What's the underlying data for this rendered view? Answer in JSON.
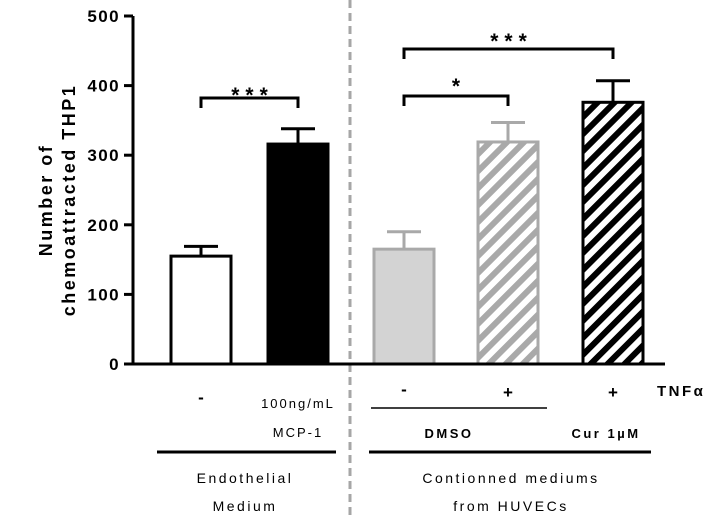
{
  "chart_data": {
    "type": "bar",
    "ylabel_lines": [
      "Number of",
      "chemoattracted THP1"
    ],
    "ylim": [
      0,
      500
    ],
    "yticks": [
      0,
      100,
      200,
      300,
      400,
      500
    ],
    "grid": false,
    "bars": [
      {
        "value": 155,
        "error": 14,
        "fill": "#ffffff",
        "stroke": "#000000",
        "pattern": "none"
      },
      {
        "value": 316,
        "error": 22,
        "fill": "#000000",
        "stroke": "#000000",
        "pattern": "none"
      },
      {
        "value": 165,
        "error": 25,
        "fill": "#d3d3d3",
        "stroke": "#a9a9a9",
        "pattern": "none"
      },
      {
        "value": 319,
        "error": 28,
        "fill": "#ffffff",
        "stroke": "#a9a9a9",
        "pattern": "hatch-gray"
      },
      {
        "value": 376,
        "error": 31,
        "fill": "#ffffff",
        "stroke": "#000000",
        "pattern": "hatch-black"
      }
    ],
    "significance": [
      {
        "from": 0,
        "to": 1,
        "label": "***"
      },
      {
        "from": 2,
        "to": 3,
        "label": "*"
      },
      {
        "from": 2,
        "to": 4,
        "label": "***"
      }
    ],
    "conditions": {
      "bar0": "-",
      "bar1_lines": [
        "100ng/mL",
        "MCP-1"
      ],
      "bar2": "-",
      "bar3": "+",
      "bar4": "+",
      "tnf_label": "TNFα",
      "dmso_label": "DMSO",
      "cur_label": "Cur 1µM"
    },
    "groups": {
      "left_lines": [
        "Endothelial",
        "Medium"
      ],
      "right_lines": [
        "Contionned mediums",
        "from HUVECs"
      ]
    },
    "divider_color": "#a6a6a6"
  }
}
